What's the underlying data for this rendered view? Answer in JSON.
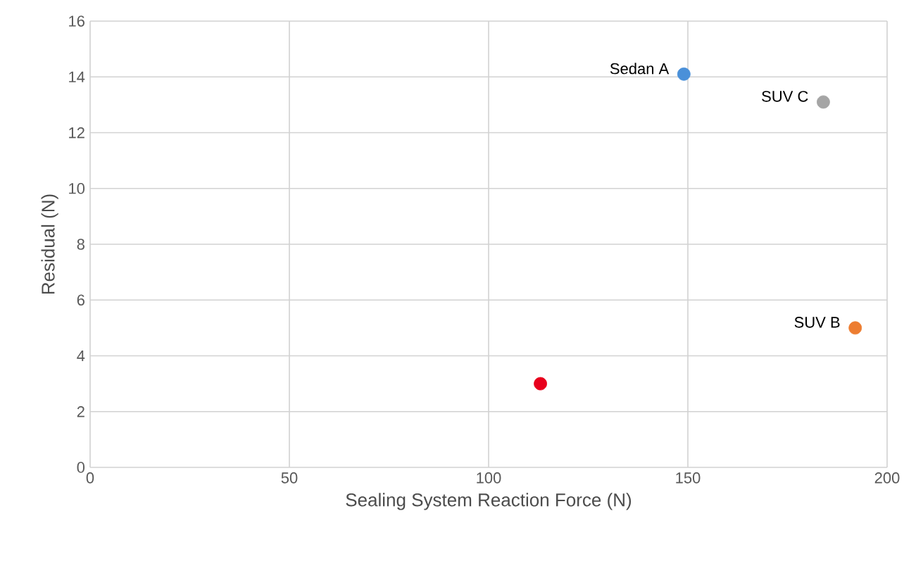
{
  "chart_data": {
    "type": "scatter",
    "xlabel": "Sealing System Reaction Force (N)",
    "ylabel": "Residual (N)",
    "xlim": [
      0,
      200
    ],
    "xticks": [
      0,
      50,
      100,
      150,
      200
    ],
    "ylim": [
      0,
      16
    ],
    "yticks": [
      0,
      2,
      4,
      6,
      8,
      10,
      12,
      14,
      16
    ],
    "grid": true,
    "legend": false,
    "series": [
      {
        "name": "Sedan A",
        "color": "#4a90d9",
        "x": [
          149
        ],
        "values": [
          14.1
        ]
      },
      {
        "name": "SUV C",
        "color": "#a5a5a5",
        "x": [
          184
        ],
        "values": [
          13.1
        ]
      },
      {
        "name": "SUV B",
        "color": "#ed7d31",
        "x": [
          192
        ],
        "values": [
          5.0
        ]
      },
      {
        "color": "#e8001c",
        "x": [
          113
        ],
        "values": [
          3.0
        ]
      }
    ]
  }
}
